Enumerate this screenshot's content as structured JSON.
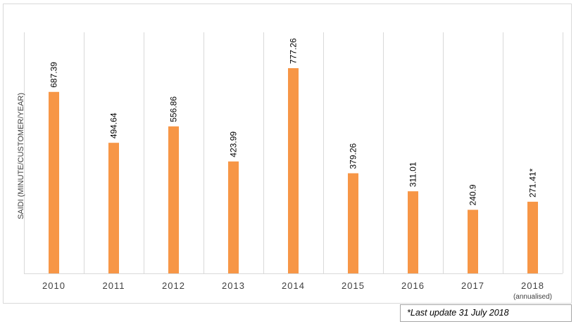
{
  "chart_data": {
    "type": "bar",
    "categories": [
      "2010",
      "2011",
      "2012",
      "2013",
      "2014",
      "2015",
      "2016",
      "2017",
      "2018"
    ],
    "category_sublabels": [
      "",
      "",
      "",
      "",
      "",
      "",
      "",
      "",
      "(annualised)"
    ],
    "values": [
      687.39,
      494.64,
      556.86,
      423.99,
      777.26,
      379.26,
      311.01,
      240.9,
      271.41
    ],
    "data_labels": [
      "687.39",
      "494.64",
      "556.86",
      "423.99",
      "777.26",
      "379.26",
      "311.01",
      "240.9",
      "271.41*"
    ],
    "ylabel": "SAIDI (MINUTE/CUSTOMER/YEAR)",
    "xlabel": "",
    "ylim": [
      0,
      800
    ],
    "bar_color": "#f79646",
    "grid": "vertical separators between categories",
    "y_axis_visible": false
  },
  "footnote": "*Last update 31 July 2018"
}
